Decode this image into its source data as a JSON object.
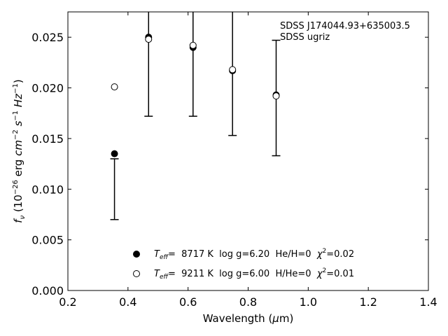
{
  "chart_data": {
    "type": "scatter",
    "xlabel_main": "Wavelength (",
    "xlabel_mu": "μ",
    "xlabel_tail": "m)",
    "ylabel_f": "f",
    "ylabel_nu": "ν",
    "ylabel_unit_a": " (10",
    "ylabel_exp1": "−26",
    "ylabel_unit_b": " erg ",
    "ylabel_cm": "cm",
    "ylabel_exp2": "−2",
    "ylabel_s": " s",
    "ylabel_exp3": "−1",
    "ylabel_hz": " Hz",
    "ylabel_exp4": "−1",
    "ylabel_close": ")",
    "xlim": [
      0.2,
      1.4
    ],
    "ylim": [
      0.0,
      0.0275
    ],
    "xticks": [
      "0.2",
      "0.4",
      "0.6",
      "0.8",
      "1.0",
      "1.2",
      "1.4"
    ],
    "yticks": [
      "0.000",
      "0.005",
      "0.010",
      "0.015",
      "0.020",
      "0.025"
    ],
    "annotations": [
      "SDSS J174044.93+635003.5",
      "SDSS ugriz"
    ],
    "observed": {
      "x": [
        0.3551,
        0.4686,
        0.6166,
        0.748,
        0.8932
      ],
      "y": [
        0.01,
        0.025,
        0.024,
        0.0215,
        0.019
      ],
      "yerr": [
        0.003,
        0.0078,
        0.0068,
        0.0062,
        0.0057
      ]
    },
    "series": [
      {
        "marker": "filled-circle",
        "x": [
          0.3551,
          0.4686,
          0.6166,
          0.748,
          0.8932
        ],
        "y": [
          0.0135,
          0.025,
          0.024,
          0.0217,
          0.0193
        ]
      },
      {
        "marker": "open-circle",
        "x": [
          0.3551,
          0.4686,
          0.6166,
          0.748,
          0.8932
        ],
        "y": [
          0.0201,
          0.0248,
          0.0242,
          0.0218,
          0.0192
        ]
      }
    ],
    "legend": [
      {
        "marker": "filled-circle",
        "teff_T": "T",
        "teff_sub": "eff",
        "temp": "=  8717 K  log g=6.20  He/H=0  ",
        "chi": "χ",
        "chi_sup": "2",
        "chi_val": "=0.02"
      },
      {
        "marker": "open-circle",
        "teff_T": "T",
        "teff_sub": "eff",
        "temp": "=  9211 K  log g=6.00  H/He=0  ",
        "chi": "χ",
        "chi_sup": "2",
        "chi_val": "=0.01"
      }
    ],
    "legend_position": "bottom-center"
  }
}
